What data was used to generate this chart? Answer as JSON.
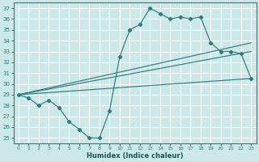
{
  "xlabel": "Humidex (Indice chaleur)",
  "xlim": [
    -0.5,
    23.5
  ],
  "ylim": [
    24.5,
    37.5
  ],
  "yticks": [
    25,
    26,
    27,
    28,
    29,
    30,
    31,
    32,
    33,
    34,
    35,
    36,
    37
  ],
  "xticks": [
    0,
    1,
    2,
    3,
    4,
    5,
    6,
    7,
    8,
    9,
    10,
    11,
    12,
    13,
    14,
    15,
    16,
    17,
    18,
    19,
    20,
    21,
    22,
    23
  ],
  "bg_color": "#cce8e8",
  "line_color": "#2e7d7d",
  "grid_color": "#ffffff",
  "lines": [
    {
      "x": [
        0,
        1,
        2,
        3,
        4,
        5,
        6,
        7,
        8,
        9,
        10,
        11,
        12,
        13,
        14,
        15,
        16,
        17,
        18,
        19,
        20,
        21,
        22,
        23
      ],
      "y": [
        29,
        28.7,
        28,
        28.5,
        27.8,
        26.5,
        25.8,
        25,
        25,
        27.5,
        32.5,
        35,
        35.5,
        37,
        36.5,
        36,
        36.2,
        36,
        36.2,
        33.8,
        33,
        33,
        32.8,
        30.5
      ]
    },
    {
      "x": [
        0,
        23
      ],
      "y": [
        29,
        33.8
      ]
    },
    {
      "x": [
        0,
        23
      ],
      "y": [
        29,
        33.0
      ]
    },
    {
      "x": [
        0,
        23
      ],
      "y": [
        29,
        30.5
      ]
    }
  ]
}
